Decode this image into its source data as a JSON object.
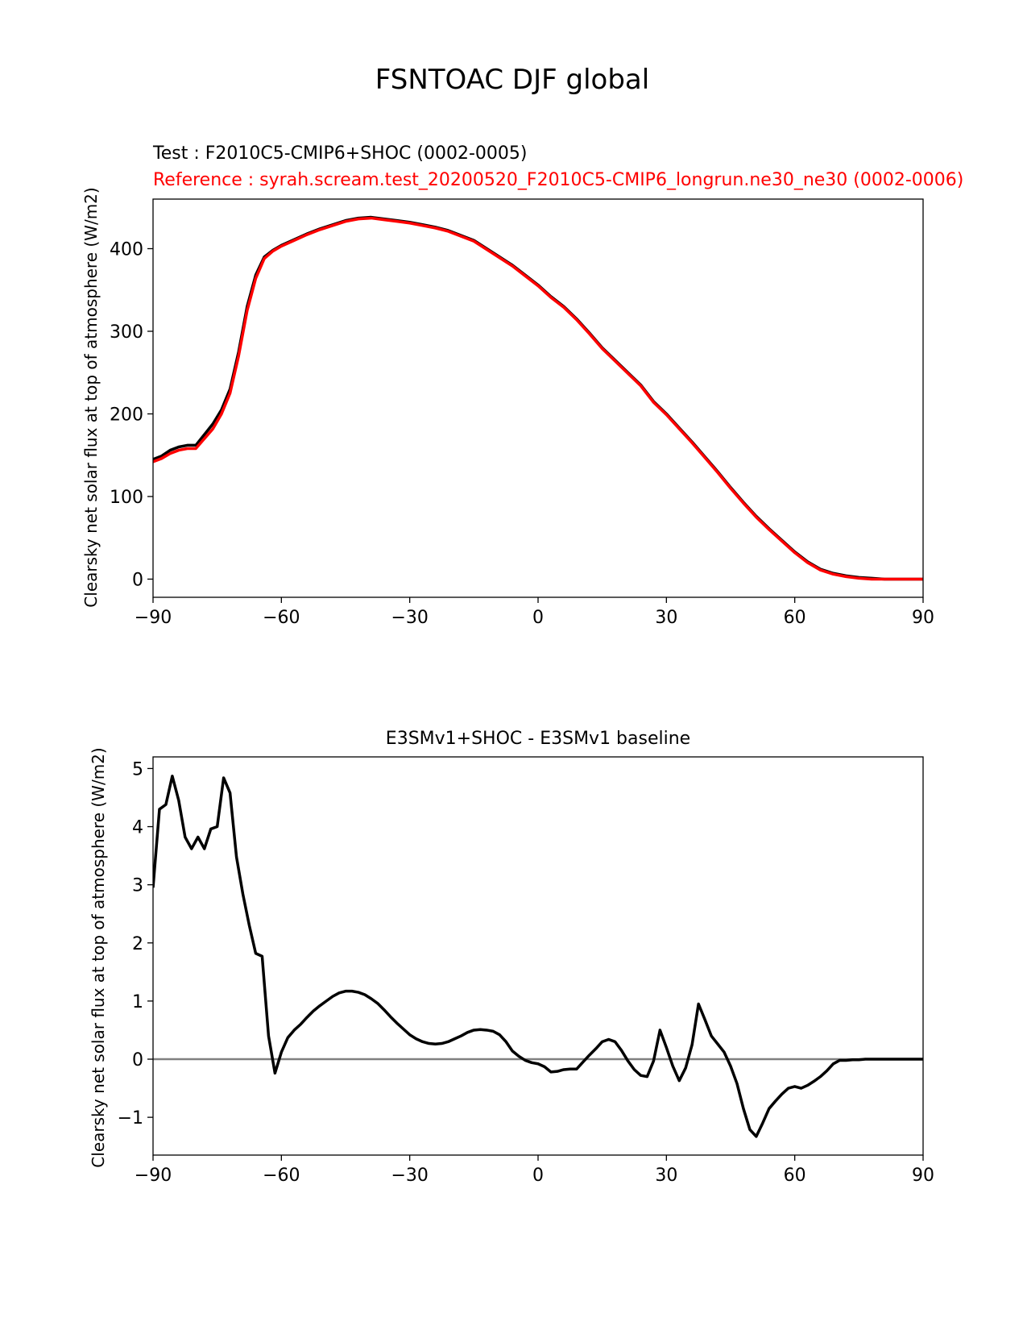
{
  "figure": {
    "suptitle": "FSNTOAC DJF global",
    "colors": {
      "test": "#000000",
      "reference": "#ff0000",
      "zero_line": "#808080",
      "axes": "#000000"
    }
  },
  "chart_data": [
    {
      "type": "line",
      "title_left": "Test : F2010C5-CMIP6+SHOC (0002-0005)",
      "title_ref": "Reference : syrah.scream.test_20200520_F2010C5-CMIP6_longrun.ne30_ne30 (0002-0006)",
      "xlabel": "",
      "ylabel": "Clearsky net solar flux at top of atmosphere (W/m2)",
      "xlim": [
        -90,
        90
      ],
      "ylim": [
        -22,
        460
      ],
      "xticks": [
        -90,
        -60,
        -30,
        0,
        30,
        60,
        90
      ],
      "xtick_labels": [
        "−90",
        "−60",
        "−30",
        "0",
        "30",
        "60",
        "90"
      ],
      "yticks": [
        0,
        100,
        200,
        300,
        400
      ],
      "ytick_labels": [
        "0",
        "100",
        "200",
        "300",
        "400"
      ],
      "series": [
        {
          "name": "Test",
          "x": [
            -90,
            -88,
            -86,
            -84,
            -82,
            -80,
            -78,
            -76,
            -74,
            -72,
            -70,
            -68,
            -66,
            -64,
            -62,
            -60,
            -57,
            -54,
            -51,
            -48,
            -45,
            -42,
            -39,
            -36,
            -33,
            -30,
            -27,
            -24,
            -21,
            -18,
            -15,
            -12,
            -9,
            -6,
            -3,
            0,
            3,
            6,
            9,
            12,
            15,
            18,
            21,
            24,
            27,
            30,
            33,
            36,
            39,
            42,
            45,
            48,
            51,
            54,
            57,
            60,
            63,
            66,
            69,
            72,
            75,
            78,
            81,
            84,
            87,
            90
          ],
          "values": [
            145,
            149,
            156,
            160,
            162,
            162,
            175,
            188,
            205,
            230,
            275,
            330,
            368,
            390,
            398,
            404,
            411,
            418,
            424,
            429,
            434,
            437,
            438,
            436,
            434,
            432,
            429,
            426,
            422,
            416,
            410,
            400,
            390,
            380,
            368,
            356,
            342,
            330,
            315,
            298,
            280,
            265,
            250,
            235,
            215,
            200,
            183,
            166,
            148,
            130,
            111,
            93,
            76,
            61,
            47,
            33,
            21,
            12,
            7,
            4,
            2,
            1,
            0,
            0,
            0,
            0
          ]
        },
        {
          "name": "Reference",
          "x": [
            -90,
            -88,
            -86,
            -84,
            -82,
            -80,
            -78,
            -76,
            -74,
            -72,
            -70,
            -68,
            -66,
            -64,
            -62,
            -60,
            -57,
            -54,
            -51,
            -48,
            -45,
            -42,
            -39,
            -36,
            -33,
            -30,
            -27,
            -24,
            -21,
            -18,
            -15,
            -12,
            -9,
            -6,
            -3,
            0,
            3,
            6,
            9,
            12,
            15,
            18,
            21,
            24,
            27,
            30,
            33,
            36,
            39,
            42,
            45,
            48,
            51,
            54,
            57,
            60,
            63,
            66,
            69,
            72,
            75,
            78,
            81,
            84,
            87,
            90
          ],
          "values": [
            142,
            146,
            152,
            156,
            158,
            158,
            170,
            182,
            200,
            225,
            270,
            325,
            364,
            388,
            397,
            403,
            410,
            417,
            423,
            428,
            433,
            436,
            437,
            435,
            433,
            431,
            428,
            425,
            421,
            415,
            409,
            399,
            389,
            379,
            367,
            355,
            341,
            329,
            314,
            297,
            279,
            264,
            249,
            234,
            214,
            199,
            182,
            165,
            147,
            129,
            110,
            92,
            75,
            60,
            46,
            32,
            20,
            11,
            6,
            3,
            1,
            0,
            0,
            0,
            0,
            0
          ]
        }
      ]
    },
    {
      "type": "line",
      "title": "E3SMv1+SHOC - E3SMv1 baseline",
      "xlabel": "",
      "ylabel": "Clearsky net solar flux at top of atmosphere (W/m2)",
      "xlim": [
        -90,
        90
      ],
      "ylim": [
        -1.65,
        5.2
      ],
      "xticks": [
        -90,
        -60,
        -30,
        0,
        30,
        60,
        90
      ],
      "xtick_labels": [
        "−90",
        "−60",
        "−30",
        "0",
        "30",
        "60",
        "90"
      ],
      "yticks": [
        -1,
        0,
        1,
        2,
        3,
        4,
        5
      ],
      "ytick_labels": [
        "−1",
        "0",
        "1",
        "2",
        "3",
        "4",
        "5"
      ],
      "hline": 0,
      "series": [
        {
          "name": "Difference",
          "x": [
            -90,
            -88.5,
            -87,
            -85.5,
            -84,
            -82.5,
            -81,
            -79.5,
            -78,
            -76.5,
            -75,
            -73.5,
            -72,
            -70.5,
            -69,
            -67.5,
            -66,
            -64.5,
            -63,
            -61.5,
            -60,
            -58.5,
            -57,
            -55.5,
            -54,
            -52.5,
            -51,
            -49.5,
            -48,
            -46.5,
            -45,
            -43.5,
            -42,
            -40.5,
            -39,
            -37.5,
            -36,
            -34.5,
            -33,
            -31.5,
            -30,
            -28.5,
            -27,
            -25.5,
            -24,
            -22.5,
            -21,
            -19.5,
            -18,
            -16.5,
            -15,
            -13.5,
            -12,
            -10.5,
            -9,
            -7.5,
            -6,
            -4.5,
            -3,
            -1.5,
            0,
            1.5,
            3,
            4.5,
            6,
            7.5,
            9,
            10.5,
            12,
            13.5,
            15,
            16.5,
            18,
            19.5,
            21,
            22.5,
            24,
            25.5,
            27,
            28.5,
            30,
            31.5,
            33,
            34.5,
            36,
            37.5,
            39,
            40.5,
            42,
            43.5,
            45,
            46.5,
            48,
            49.5,
            51,
            52.5,
            54,
            55.5,
            57,
            58.5,
            60,
            61.5,
            63,
            64.5,
            66,
            67.5,
            69,
            70.5,
            72,
            73.5,
            75,
            76.5,
            78,
            79.5,
            81,
            82.5,
            84,
            85.5,
            87,
            88.5,
            90
          ],
          "values": [
            2.95,
            4.3,
            4.38,
            4.87,
            4.45,
            3.82,
            3.62,
            3.82,
            3.62,
            3.96,
            4.0,
            4.84,
            4.58,
            3.48,
            2.84,
            2.3,
            1.82,
            1.77,
            0.4,
            -0.24,
            0.12,
            0.37,
            0.5,
            0.6,
            0.72,
            0.83,
            0.92,
            1.0,
            1.08,
            1.14,
            1.17,
            1.17,
            1.15,
            1.11,
            1.04,
            0.96,
            0.85,
            0.73,
            0.62,
            0.52,
            0.42,
            0.35,
            0.3,
            0.27,
            0.26,
            0.27,
            0.3,
            0.35,
            0.4,
            0.46,
            0.5,
            0.51,
            0.5,
            0.48,
            0.42,
            0.3,
            0.14,
            0.05,
            -0.02,
            -0.06,
            -0.08,
            -0.13,
            -0.22,
            -0.21,
            -0.18,
            -0.17,
            -0.17,
            -0.05,
            0.07,
            0.18,
            0.3,
            0.34,
            0.3,
            0.15,
            -0.03,
            -0.18,
            -0.28,
            -0.3,
            -0.03,
            0.5,
            0.2,
            -0.12,
            -0.37,
            -0.15,
            0.25,
            0.95,
            0.68,
            0.4,
            0.26,
            0.12,
            -0.12,
            -0.42,
            -0.85,
            -1.21,
            -1.33,
            -1.1,
            -0.85,
            -0.72,
            -0.6,
            -0.5,
            -0.47,
            -0.5,
            -0.45,
            -0.38,
            -0.3,
            -0.2,
            -0.08,
            -0.02,
            -0.02,
            -0.01,
            -0.01,
            0.0,
            0.0,
            0.0,
            0.0,
            0.0,
            0.0,
            0.0,
            0.0,
            0.0,
            0.0
          ]
        }
      ]
    }
  ]
}
